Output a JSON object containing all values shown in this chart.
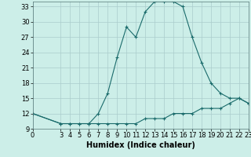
{
  "xlabel": "Humidex (Indice chaleur)",
  "bg_color": "#cceee8",
  "line_color": "#1a6b6b",
  "grid_color": "#aacccc",
  "x_upper": [
    0,
    3,
    4,
    5,
    6,
    7,
    8,
    9,
    10,
    11,
    12,
    13,
    14,
    15,
    16,
    17,
    18,
    19,
    20,
    21,
    22,
    23
  ],
  "y_upper": [
    12,
    10,
    10,
    10,
    10,
    12,
    16,
    23,
    29,
    27,
    32,
    34,
    34,
    34,
    33,
    27,
    22,
    18,
    16,
    15,
    15,
    14
  ],
  "x_lower": [
    0,
    3,
    4,
    5,
    6,
    7,
    8,
    9,
    10,
    11,
    12,
    13,
    14,
    15,
    16,
    17,
    18,
    19,
    20,
    21,
    22,
    23
  ],
  "y_lower": [
    12,
    10,
    10,
    10,
    10,
    10,
    10,
    10,
    10,
    10,
    11,
    11,
    11,
    12,
    12,
    12,
    13,
    13,
    13,
    14,
    15,
    14
  ],
  "xlim": [
    0,
    23
  ],
  "ylim": [
    9,
    34
  ],
  "yticks": [
    9,
    12,
    15,
    18,
    21,
    24,
    27,
    30,
    33
  ],
  "xticks": [
    0,
    3,
    4,
    5,
    6,
    7,
    8,
    9,
    10,
    11,
    12,
    13,
    14,
    15,
    16,
    17,
    18,
    19,
    20,
    21,
    22,
    23
  ],
  "tick_fontsize": 6,
  "xlabel_fontsize": 7
}
